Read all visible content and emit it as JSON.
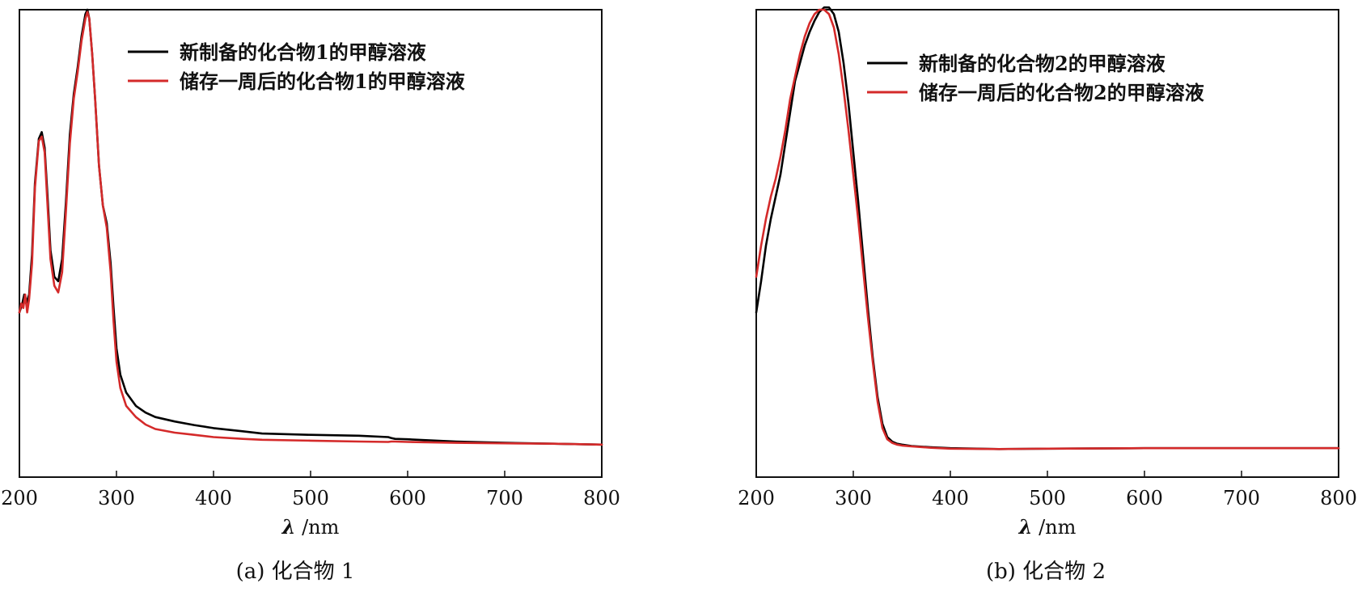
{
  "chart_data": [
    {
      "type": "line",
      "panel": "a",
      "caption": "(a) 化合物 1",
      "xlabel_symbol": "λ",
      "xlabel_unit": " /nm",
      "xlim": [
        200,
        800
      ],
      "ylim": [
        0,
        1.05
      ],
      "xticks": [
        "200",
        "300",
        "400",
        "500",
        "600",
        "700",
        "800"
      ],
      "legend_position": "top-right",
      "colors": {
        "fresh": "#000000",
        "stored": "#d42a2a"
      },
      "series": [
        {
          "name": "新制备的化合物1的甲醇溶液",
          "color": "#000000",
          "x": [
            200,
            203,
            205,
            207,
            210,
            213,
            216,
            220,
            223,
            226,
            229,
            232,
            236,
            240,
            244,
            248,
            252,
            256,
            260,
            264,
            268,
            270,
            272,
            275,
            278,
            282,
            286,
            290,
            294,
            297,
            300,
            304,
            310,
            320,
            330,
            340,
            360,
            380,
            400,
            430,
            450,
            500,
            550,
            580,
            583,
            587,
            600,
            650,
            700,
            750,
            800
          ],
          "y": [
            0.37,
            0.39,
            0.41,
            0.39,
            0.41,
            0.5,
            0.66,
            0.76,
            0.775,
            0.74,
            0.63,
            0.51,
            0.45,
            0.44,
            0.49,
            0.62,
            0.77,
            0.86,
            0.92,
            0.99,
            1.04,
            1.05,
            1.03,
            0.95,
            0.85,
            0.7,
            0.61,
            0.57,
            0.48,
            0.38,
            0.29,
            0.23,
            0.19,
            0.16,
            0.145,
            0.135,
            0.125,
            0.117,
            0.11,
            0.103,
            0.098,
            0.095,
            0.093,
            0.09,
            0.088,
            0.086,
            0.085,
            0.08,
            0.077,
            0.075,
            0.073
          ]
        },
        {
          "name": "储存一周后的化合物1的甲醇溶液",
          "color": "#d42a2a",
          "x": [
            200,
            202,
            204,
            206,
            208,
            210,
            213,
            216,
            220,
            223,
            226,
            229,
            232,
            236,
            240,
            244,
            248,
            252,
            256,
            260,
            264,
            268,
            270,
            272,
            275,
            278,
            282,
            286,
            290,
            294,
            297,
            300,
            304,
            310,
            320,
            330,
            340,
            360,
            380,
            400,
            430,
            450,
            500,
            550,
            580,
            583,
            587,
            600,
            650,
            700,
            750,
            800
          ],
          "y": [
            0.37,
            0.39,
            0.38,
            0.41,
            0.37,
            0.4,
            0.48,
            0.65,
            0.755,
            0.765,
            0.73,
            0.61,
            0.49,
            0.43,
            0.415,
            0.46,
            0.6,
            0.75,
            0.85,
            0.91,
            0.98,
            1.03,
            1.045,
            1.03,
            0.95,
            0.85,
            0.7,
            0.61,
            0.56,
            0.46,
            0.35,
            0.26,
            0.2,
            0.16,
            0.135,
            0.118,
            0.108,
            0.1,
            0.095,
            0.09,
            0.086,
            0.084,
            0.082,
            0.08,
            0.079,
            0.08,
            0.08,
            0.079,
            0.077,
            0.076,
            0.075,
            0.073
          ]
        }
      ]
    },
    {
      "type": "line",
      "panel": "b",
      "caption": "(b) 化合物 2",
      "xlabel_symbol": "λ",
      "xlabel_unit": " /nm",
      "xlim": [
        200,
        800
      ],
      "ylim": [
        0,
        1.05
      ],
      "xticks": [
        "200",
        "300",
        "400",
        "500",
        "600",
        "700",
        "800"
      ],
      "legend_position": "top-right",
      "colors": {
        "fresh": "#000000",
        "stored": "#d42a2a"
      },
      "series": [
        {
          "name": "新制备的化合物2的甲醇溶液",
          "color": "#000000",
          "x": [
            200,
            205,
            210,
            215,
            220,
            225,
            230,
            235,
            240,
            245,
            250,
            255,
            260,
            265,
            270,
            275,
            280,
            285,
            290,
            295,
            300,
            305,
            310,
            315,
            320,
            325,
            330,
            335,
            340,
            345,
            350,
            360,
            380,
            400,
            450,
            500,
            600,
            700,
            800
          ],
          "y": [
            0.37,
            0.44,
            0.52,
            0.58,
            0.63,
            0.68,
            0.75,
            0.82,
            0.89,
            0.93,
            0.97,
            1.0,
            1.025,
            1.045,
            1.055,
            1.055,
            1.04,
            1.0,
            0.93,
            0.84,
            0.73,
            0.62,
            0.5,
            0.38,
            0.27,
            0.18,
            0.12,
            0.09,
            0.08,
            0.075,
            0.073,
            0.07,
            0.067,
            0.065,
            0.063,
            0.064,
            0.065,
            0.065,
            0.065
          ]
        },
        {
          "name": "储存一周后的化合物2的甲醇溶液",
          "color": "#d42a2a",
          "x": [
            200,
            205,
            210,
            215,
            220,
            225,
            230,
            235,
            240,
            245,
            250,
            255,
            260,
            265,
            270,
            275,
            280,
            285,
            290,
            295,
            300,
            305,
            310,
            315,
            320,
            325,
            330,
            335,
            340,
            345,
            350,
            360,
            380,
            400,
            450,
            500,
            600,
            700,
            800
          ],
          "y": [
            0.45,
            0.52,
            0.58,
            0.63,
            0.67,
            0.72,
            0.78,
            0.85,
            0.9,
            0.95,
            0.99,
            1.02,
            1.04,
            1.05,
            1.05,
            1.04,
            1.01,
            0.95,
            0.87,
            0.78,
            0.68,
            0.58,
            0.47,
            0.36,
            0.26,
            0.17,
            0.11,
            0.085,
            0.077,
            0.073,
            0.071,
            0.069,
            0.066,
            0.064,
            0.063,
            0.064,
            0.065,
            0.065,
            0.065
          ]
        }
      ]
    }
  ]
}
